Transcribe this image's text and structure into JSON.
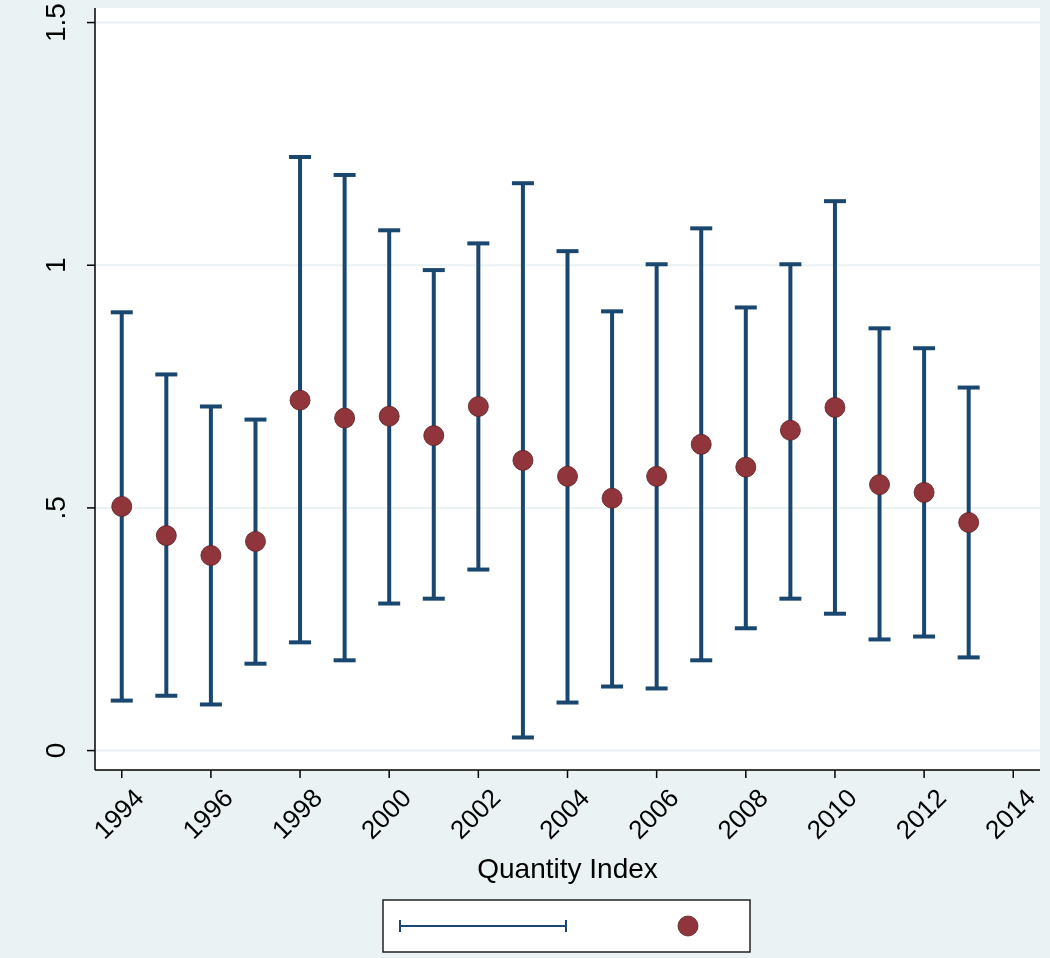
{
  "chart_data": {
    "type": "scatter",
    "xlabel": "Quantity Index",
    "x": [
      1994,
      1995,
      1996,
      1997,
      1998,
      1999,
      2000,
      2001,
      2002,
      2003,
      2004,
      2005,
      2006,
      2007,
      2008,
      2009,
      2010,
      2011,
      2012,
      2013
    ],
    "xlim": [
      1993.4,
      2014.6
    ],
    "xticks": [
      1994,
      1996,
      1998,
      2000,
      2002,
      2004,
      2006,
      2008,
      2010,
      2012,
      2014
    ],
    "ylim": [
      -0.04,
      1.53
    ],
    "yticks": [
      {
        "value": 0,
        "label": "0"
      },
      {
        "value": 0.5,
        "label": ".5"
      },
      {
        "value": 1,
        "label": "1"
      },
      {
        "value": 1.5,
        "label": "1.5"
      }
    ],
    "grid": "y",
    "series": [
      {
        "color": "#90353b",
        "marker": "circle",
        "values": [
          0.503,
          0.443,
          0.402,
          0.431,
          0.722,
          0.685,
          0.689,
          0.649,
          0.709,
          0.598,
          0.565,
          0.52,
          0.565,
          0.631,
          0.584,
          0.66,
          0.707,
          0.548,
          0.532,
          0.47
        ],
        "errors": [
          [
            0.103,
            0.903
          ],
          [
            0.113,
            0.775
          ],
          [
            0.095,
            0.709
          ],
          [
            0.179,
            0.682
          ],
          [
            0.223,
            1.223
          ],
          [
            0.186,
            1.186
          ],
          [
            0.303,
            1.072
          ],
          [
            0.313,
            0.99
          ],
          [
            0.373,
            1.045
          ],
          [
            0.027,
            1.169
          ],
          [
            0.099,
            1.029
          ],
          [
            0.132,
            0.905
          ],
          [
            0.128,
            1.002
          ],
          [
            0.186,
            1.076
          ],
          [
            0.252,
            0.913
          ],
          [
            0.313,
            1.002
          ],
          [
            0.282,
            1.132
          ],
          [
            0.229,
            0.87
          ],
          [
            0.235,
            0.829
          ],
          [
            0.192,
            0.748
          ]
        ]
      }
    ]
  }
}
